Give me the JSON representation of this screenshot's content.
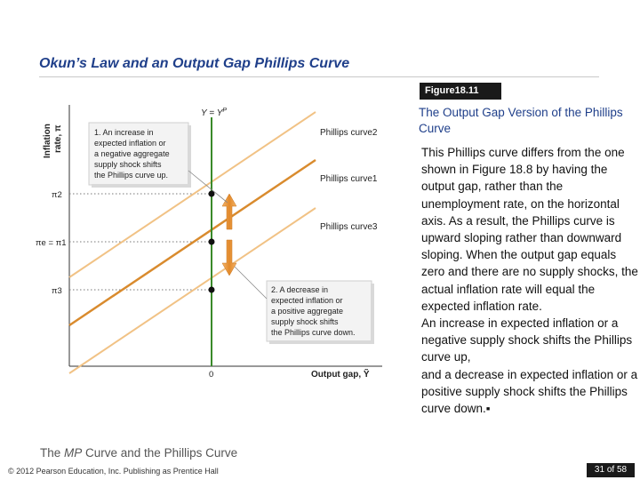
{
  "slide": {
    "title": "Okun’s Law and an Output Gap Phillips Curve",
    "figure_badge": "Figure18.11",
    "figure_title": "The Output Gap Version of the Phillips Curve",
    "figure_body": [
      "This Phillips curve differs from the one shown in Figure 18.8 by having the output gap, rather than the unemployment rate, on the horizontal axis. As a result, the Phillips curve is upward sloping rather than downward sloping. When the output gap equals zero and there are no supply shocks, the actual inflation rate will equal the expected inflation rate.",
      "An increase in expected inflation or a negative supply shock shifts the Phillips curve up,",
      "and a decrease in expected inflation or a positive supply shock shifts the Phillips curve down.▪"
    ],
    "footer_subtitle_pre": "The ",
    "footer_subtitle_italic": "MP",
    "footer_subtitle_post": " Curve and the Phillips Curve",
    "copyright": "© 2012 Pearson Education, Inc. Publishing as Prentice Hall",
    "page": "31 of 58"
  },
  "diagram": {
    "y_axis_label_main": "Inflation",
    "y_axis_label_sub": "rate, π",
    "x_axis_label": "Output gap, Ỹ",
    "origin_label": "0",
    "vertical_line_label": "Y = Y",
    "vertical_line_label_sup": "P",
    "pi_labels": {
      "pi2": "π2",
      "pi1": "πe = π1",
      "pi3": "π3"
    },
    "curve_labels": {
      "curve2": "Phillips curve2",
      "curve1": "Phillips curve1",
      "curve3": "Phillips curve3"
    },
    "callout_up": [
      "1. An increase in",
      "expected inflation or",
      "a negative aggregate",
      "supply shock shifts",
      "the Phillips curve up."
    ],
    "callout_down": [
      "2. A decrease in",
      "expected inflation or",
      "a positive aggregate",
      "supply shock shifts",
      "the Phillips curve down."
    ],
    "colors": {
      "vertical_line": "#3a8a2a",
      "curve_main": "#d98b2e",
      "curve_shifted": "#f1c285",
      "arrow": "#e28a2a",
      "callout_bg": "#f3f3f3",
      "callout_border": "#cfcfcf"
    }
  }
}
